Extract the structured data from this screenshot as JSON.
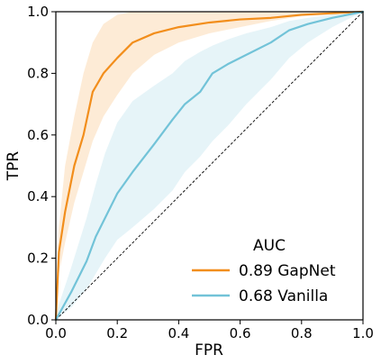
{
  "chart_data": {
    "type": "line",
    "title": "",
    "xlabel": "FPR",
    "ylabel": "TPR",
    "xlim": [
      0.0,
      1.0
    ],
    "ylim": [
      0.0,
      1.0
    ],
    "x_ticks": [
      "0.0",
      "0.2",
      "0.4",
      "0.6",
      "0.8",
      "1.0"
    ],
    "y_ticks": [
      "0.0",
      "0.2",
      "0.4",
      "0.6",
      "0.8",
      "1.0"
    ],
    "grid": false,
    "legend": {
      "title": "AUC",
      "position": "bottom-right"
    },
    "series": [
      {
        "name": "0.89 GapNet",
        "color": "#f28e1c",
        "x": [
          0.0,
          0.01,
          0.03,
          0.06,
          0.09,
          0.12,
          0.155,
          0.2,
          0.25,
          0.32,
          0.4,
          0.5,
          0.6,
          0.7,
          0.8,
          0.9,
          1.0
        ],
        "y": [
          0.0,
          0.22,
          0.35,
          0.5,
          0.6,
          0.74,
          0.8,
          0.85,
          0.9,
          0.93,
          0.95,
          0.965,
          0.975,
          0.98,
          0.99,
          0.995,
          1.0
        ],
        "band_upper": [
          0.08,
          0.3,
          0.5,
          0.66,
          0.8,
          0.9,
          0.96,
          0.99,
          1.0,
          1.0,
          1.0,
          1.0,
          1.0,
          1.0,
          1.0,
          1.0,
          1.0
        ],
        "band_lower": [
          0.0,
          0.15,
          0.25,
          0.38,
          0.48,
          0.58,
          0.66,
          0.73,
          0.8,
          0.86,
          0.9,
          0.93,
          0.95,
          0.97,
          0.985,
          0.99,
          1.0
        ]
      },
      {
        "name": "0.68 Vanilla",
        "color": "#72c3d8",
        "x": [
          0.0,
          0.05,
          0.1,
          0.13,
          0.16,
          0.2,
          0.25,
          0.32,
          0.38,
          0.42,
          0.47,
          0.51,
          0.56,
          0.62,
          0.7,
          0.76,
          0.82,
          0.9,
          1.0
        ],
        "y": [
          0.0,
          0.09,
          0.19,
          0.27,
          0.33,
          0.41,
          0.48,
          0.57,
          0.65,
          0.7,
          0.74,
          0.8,
          0.83,
          0.86,
          0.9,
          0.94,
          0.96,
          0.98,
          1.0
        ],
        "band_upper": [
          0.02,
          0.17,
          0.33,
          0.44,
          0.54,
          0.64,
          0.71,
          0.76,
          0.8,
          0.84,
          0.87,
          0.89,
          0.91,
          0.93,
          0.95,
          0.97,
          0.98,
          0.99,
          1.0
        ],
        "band_lower": [
          0.0,
          0.04,
          0.1,
          0.15,
          0.2,
          0.26,
          0.3,
          0.36,
          0.42,
          0.48,
          0.53,
          0.58,
          0.63,
          0.7,
          0.78,
          0.85,
          0.9,
          0.95,
          1.0
        ]
      }
    ],
    "reference_line": {
      "style": "dashed",
      "color": "#000000",
      "from": [
        0.0,
        0.0
      ],
      "to": [
        1.0,
        1.0
      ]
    }
  }
}
